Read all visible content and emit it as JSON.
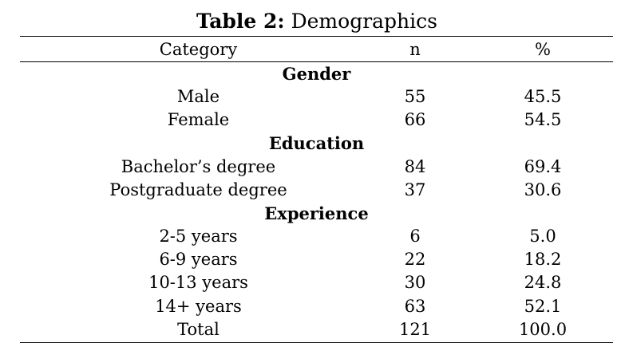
{
  "table": {
    "title_label": "Table 2:",
    "title_text": "Demographics",
    "headers": {
      "category": "Category",
      "n": "n",
      "percent": "%"
    },
    "groups": [
      {
        "name": "Gender",
        "rows": [
          {
            "category": "Male",
            "n": "55",
            "percent": "45.5"
          },
          {
            "category": "Female",
            "n": "66",
            "percent": "54.5"
          }
        ]
      },
      {
        "name": "Education",
        "rows": [
          {
            "category": "Bachelor’s degree",
            "n": "84",
            "percent": "69.4"
          },
          {
            "category": "Postgraduate degree",
            "n": "37",
            "percent": "30.6"
          }
        ]
      },
      {
        "name": "Experience",
        "rows": [
          {
            "category": "2-5 years",
            "n": "6",
            "percent": "5.0"
          },
          {
            "category": "6-9 years",
            "n": "22",
            "percent": "18.2"
          },
          {
            "category": "10-13 years",
            "n": "30",
            "percent": "24.8"
          },
          {
            "category": "14+ years",
            "n": "63",
            "percent": "52.1"
          }
        ]
      }
    ],
    "total": {
      "category": "Total",
      "n": "121",
      "percent": "100.0"
    }
  }
}
